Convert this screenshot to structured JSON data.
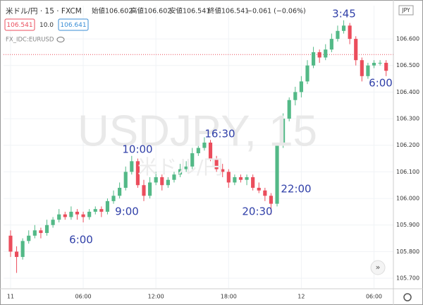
{
  "header": {
    "symbol": "米ドル/円 · 15 · FXCM",
    "open": "始値106.602",
    "high": "高値106.602",
    "low": "安値106.541",
    "close": "終値106.541",
    "change": "−0.061 (−0.06%)",
    "bid": "106.541",
    "spread": "10.0",
    "ask": "106.641",
    "compare": "FX_IDC:EURUSD"
  },
  "watermark": {
    "main": "USDJPY, 15",
    "sub": "米ドル/円"
  },
  "chart_data": {
    "type": "candlestick",
    "currency": "JPY",
    "up_color": "#53b987",
    "down_color": "#eb4d5c",
    "price_line": 106.541,
    "x": [
      0,
      0.5,
      1,
      1.5,
      2,
      2.5,
      3,
      3.5,
      4,
      4.5,
      5,
      5.5,
      6,
      6.5,
      7,
      7.5,
      8,
      8.5,
      9,
      9.5,
      10,
      10.5,
      11,
      11.5,
      12,
      12.5,
      13,
      13.5,
      14,
      14.5,
      15,
      15.5,
      16,
      16.5,
      17,
      17.5,
      18,
      18.5,
      19,
      19.5,
      20,
      20.5,
      21,
      21.5,
      22,
      22.5,
      23,
      23.5,
      24,
      24.5,
      25,
      25.5,
      26,
      26.5,
      27,
      27.5,
      28,
      28.5,
      29,
      29.5,
      30,
      30.5,
      31
    ],
    "open": [
      105.86,
      105.8,
      105.78,
      105.84,
      105.86,
      105.88,
      105.87,
      105.9,
      105.92,
      105.94,
      105.93,
      105.95,
      105.94,
      105.93,
      105.95,
      105.96,
      105.95,
      105.99,
      106.01,
      106.04,
      106.1,
      106.14,
      106.05,
      106.01,
      106.06,
      106.08,
      106.05,
      106.07,
      106.09,
      106.11,
      106.12,
      106.17,
      106.19,
      106.21,
      106.15,
      106.11,
      106.1,
      106.06,
      106.08,
      106.07,
      106.08,
      106.04,
      106.03,
      106.01,
      105.98,
      106.2,
      106.3,
      106.37,
      106.4,
      106.44,
      106.5,
      106.55,
      106.53,
      106.56,
      106.6,
      106.63,
      106.65,
      106.6,
      106.52,
      106.46,
      106.5,
      106.51,
      106.51
    ],
    "high": [
      105.88,
      105.82,
      105.85,
      105.88,
      105.9,
      105.89,
      105.92,
      105.93,
      105.96,
      105.95,
      105.97,
      105.96,
      105.95,
      105.96,
      105.97,
      105.97,
      106.0,
      106.03,
      106.06,
      106.12,
      106.16,
      106.15,
      106.07,
      106.08,
      106.1,
      106.09,
      106.08,
      106.1,
      106.13,
      106.14,
      106.19,
      106.21,
      106.23,
      106.22,
      106.16,
      106.13,
      106.11,
      106.09,
      106.09,
      106.09,
      106.09,
      106.06,
      106.04,
      106.02,
      106.21,
      106.32,
      106.38,
      106.42,
      106.46,
      106.52,
      106.57,
      106.56,
      106.58,
      106.62,
      106.65,
      106.67,
      106.66,
      106.61,
      106.53,
      106.51,
      106.52,
      106.52,
      106.52
    ],
    "low": [
      105.78,
      105.72,
      105.77,
      105.83,
      105.85,
      105.85,
      105.86,
      105.89,
      105.91,
      105.92,
      105.92,
      105.92,
      105.91,
      105.92,
      105.94,
      105.93,
      105.94,
      105.98,
      106.0,
      106.03,
      106.09,
      106.04,
      105.99,
      106.0,
      106.05,
      106.03,
      106.04,
      106.06,
      106.08,
      106.1,
      106.11,
      106.16,
      106.18,
      106.14,
      106.1,
      106.08,
      106.04,
      106.05,
      106.06,
      106.05,
      106.03,
      106.02,
      105.99,
      105.94,
      105.97,
      106.19,
      106.29,
      106.35,
      106.38,
      106.43,
      106.49,
      106.51,
      106.52,
      106.55,
      106.59,
      106.62,
      106.58,
      106.5,
      106.44,
      106.45,
      106.49,
      106.5,
      106.46
    ],
    "close": [
      105.8,
      105.78,
      105.84,
      105.86,
      105.88,
      105.87,
      105.9,
      105.92,
      105.94,
      105.93,
      105.95,
      105.94,
      105.93,
      105.95,
      105.96,
      105.95,
      105.99,
      106.01,
      106.04,
      106.1,
      106.14,
      106.05,
      106.01,
      106.06,
      106.08,
      106.05,
      106.07,
      106.09,
      106.11,
      106.12,
      106.17,
      106.19,
      106.21,
      106.15,
      106.11,
      106.1,
      106.06,
      106.08,
      106.07,
      106.08,
      106.04,
      106.03,
      106.01,
      105.98,
      106.2,
      106.3,
      106.37,
      106.4,
      106.44,
      106.5,
      106.55,
      106.53,
      106.56,
      106.6,
      106.63,
      106.65,
      106.6,
      106.52,
      106.46,
      106.5,
      106.51,
      106.51,
      106.48
    ],
    "xlim": [
      -0.58,
      31.6
    ],
    "ylim": [
      105.663,
      106.725
    ],
    "xticks": [
      {
        "value": 0,
        "label": "11"
      },
      {
        "value": 6,
        "label": "06:00"
      },
      {
        "value": 12,
        "label": "12:00"
      },
      {
        "value": 18,
        "label": "18:00"
      },
      {
        "value": 24,
        "label": "12"
      },
      {
        "value": 30,
        "label": "06:00"
      }
    ],
    "yticks": [
      {
        "value": 105.7,
        "label": "105.700"
      },
      {
        "value": 105.8,
        "label": "105.800"
      },
      {
        "value": 105.9,
        "label": "105.900"
      },
      {
        "value": 106.0,
        "label": "106.000"
      },
      {
        "value": 106.1,
        "label": "106.100"
      },
      {
        "value": 106.2,
        "label": "106.200"
      },
      {
        "value": 106.3,
        "label": "106.300"
      },
      {
        "value": 106.4,
        "label": "106.400"
      },
      {
        "value": 106.5,
        "label": "106.500"
      },
      {
        "value": 106.6,
        "label": "106.600"
      }
    ],
    "annotations": [
      "3:45",
      "6:00",
      "16:30",
      "10:00",
      "22:00",
      "9:00",
      "20:30",
      "6:00"
    ]
  }
}
